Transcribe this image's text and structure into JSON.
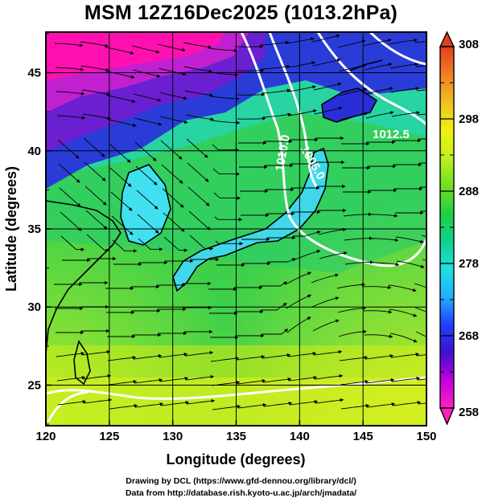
{
  "title": "MSM 12Z16Dec2025 (1013.2hPa)",
  "map": {
    "x_axis": {
      "label": "Longitude (degrees)",
      "min": 120,
      "max": 150,
      "ticks": [
        "120",
        "125",
        "130",
        "135",
        "140",
        "145",
        "150"
      ]
    },
    "y_axis": {
      "label": "Latitude  (degrees)",
      "min": 22.4,
      "max": 47.6,
      "ticks": [
        "25",
        "30",
        "35",
        "40",
        "45"
      ]
    },
    "contour_labels": [
      "1012.5",
      "1010.0",
      "1005.0"
    ],
    "colorbar": {
      "min": 258,
      "max": 308,
      "ticks": [
        "308",
        "298",
        "288",
        "278",
        "268",
        "258"
      ],
      "colors": [
        "#ff20c0",
        "#c000e0",
        "#4010d0",
        "#2040ff",
        "#20b0ff",
        "#20e0e0",
        "#10d090",
        "#20d040",
        "#70e020",
        "#c0f020",
        "#f0f010",
        "#f0c020",
        "#f08020",
        "#e04020"
      ]
    }
  },
  "credits": {
    "line1": "Drawing by DCL (https://www.gfd-dennou.org/library/dcl/)",
    "line2": "Data from http://database.rish.kyoto-u.ac.jp/arch/jmadata/"
  }
}
